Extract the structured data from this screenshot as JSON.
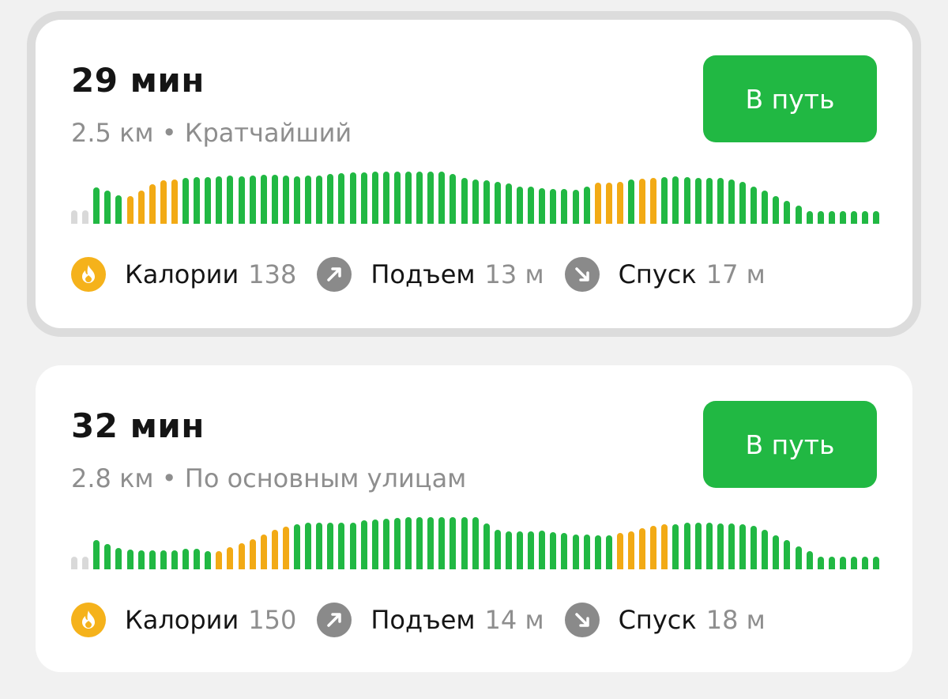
{
  "colors": {
    "accent": "#21b843",
    "flat": "#21b843",
    "climb": "#f2aa15",
    "unknown": "#d9d9d9",
    "calories_icon": "#f5b21b",
    "slope_icon": "#8a8a8a"
  },
  "routes": [
    {
      "selected": true,
      "duration": "29 мин",
      "subtitle": "2.5 км • Кратчайший",
      "button": "В путь",
      "calories_label": "Калории",
      "calories_value": "138",
      "ascent_label": "Подъем",
      "ascent_value": "13 м",
      "descent_label": "Спуск",
      "descent_value": "17 м",
      "icons": {
        "calories": "fire-icon",
        "ascent": "arrow-up-right-icon",
        "descent": "arrow-down-right-icon"
      }
    },
    {
      "selected": false,
      "duration": "32 мин",
      "subtitle": "2.8 км • По основным улицам",
      "button": "В путь",
      "calories_label": "Калории",
      "calories_value": "150",
      "ascent_label": "Подъем",
      "ascent_value": "14 м",
      "descent_label": "Спуск",
      "descent_value": "18 м",
      "icons": {
        "calories": "fire-icon",
        "ascent": "arrow-up-right-icon",
        "descent": "arrow-down-right-icon"
      }
    }
  ],
  "chart_data": [
    {
      "type": "bar",
      "values": [
        17,
        17,
        46,
        42,
        36,
        35,
        42,
        50,
        55,
        56,
        58,
        59,
        59,
        60,
        61,
        60,
        61,
        62,
        62,
        61,
        60,
        61,
        61,
        63,
        64,
        65,
        65,
        66,
        66,
        66,
        66,
        66,
        66,
        66,
        63,
        58,
        56,
        55,
        53,
        51,
        47,
        47,
        45,
        44,
        44,
        43,
        47,
        52,
        52,
        53,
        56,
        57,
        58,
        59,
        60,
        59,
        58,
        58,
        58,
        56,
        53,
        47,
        42,
        35,
        29,
        23,
        16,
        16,
        16,
        16,
        16,
        16,
        16
      ],
      "grades": "nnfffuuuuufffffffffffffffffffffffffffffffffffffuuufuufffffffffffffffffffffuu"
    },
    {
      "type": "bar",
      "values": [
        16,
        16,
        37,
        32,
        27,
        25,
        24,
        24,
        24,
        24,
        26,
        26,
        23,
        23,
        28,
        33,
        38,
        44,
        50,
        54,
        57,
        59,
        59,
        59,
        59,
        59,
        62,
        63,
        64,
        65,
        66,
        66,
        66,
        66,
        66,
        66,
        66,
        58,
        50,
        48,
        48,
        48,
        49,
        47,
        46,
        44,
        44,
        43,
        43,
        46,
        48,
        52,
        55,
        57,
        57,
        59,
        59,
        59,
        58,
        58,
        57,
        55,
        50,
        43,
        37,
        29,
        23,
        16,
        16,
        16,
        16,
        16,
        16
      ],
      "grades": "nnfffffffffffuuuuuuufffffffffffffffffffffffffffffuuuuufffffffffffffffffffu"
    }
  ]
}
